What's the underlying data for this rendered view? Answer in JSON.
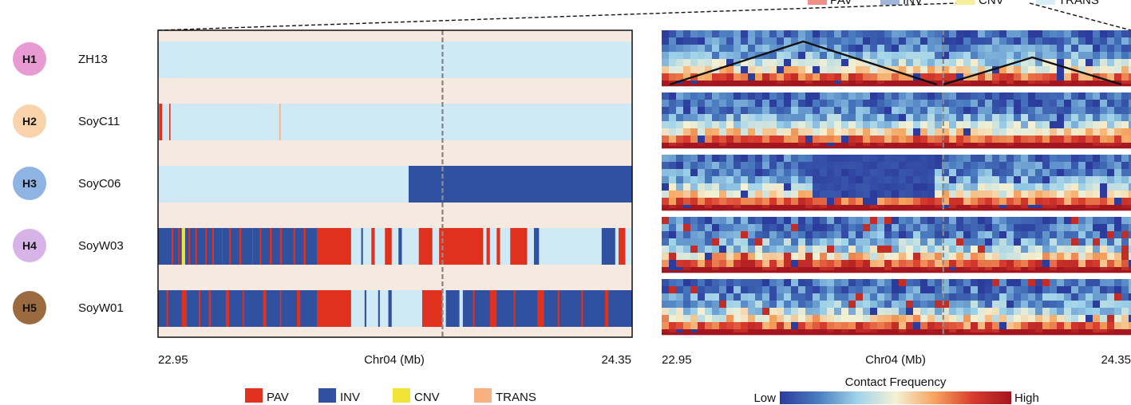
{
  "top_legend_partial": [
    "PAV",
    "INV",
    "CNV",
    "TRANS"
  ],
  "haplotypes": [
    {
      "id": "H1",
      "name": "ZH13",
      "color": "#e79bd2"
    },
    {
      "id": "H2",
      "name": "SoyC11",
      "color": "#f9d3ac"
    },
    {
      "id": "H3",
      "name": "SoyC06",
      "color": "#8fb3e3"
    },
    {
      "id": "H4",
      "name": "SoyW03",
      "color": "#d7b3e8"
    },
    {
      "id": "H5",
      "name": "SoyW01",
      "color": "#9b6a3f"
    }
  ],
  "chart_data": [
    {
      "type": "heatmap",
      "description_kind": "structural variant tracks",
      "xlabel": "Chr04 (Mb)",
      "xlim": [
        22.95,
        24.35
      ],
      "tick_labels": [
        "22.95",
        "24.35"
      ],
      "marker_position_mb": 23.79,
      "legend": [
        {
          "label": "PAV",
          "color": "#e0301e"
        },
        {
          "label": "INV",
          "color": "#3050a0"
        },
        {
          "label": "CNV",
          "color": "#f2e436"
        },
        {
          "label": "TRANS",
          "color": "#f7b07e"
        }
      ],
      "colors": {
        "background": "#f6e9df",
        "none": "#cfeaf4"
      },
      "tracks": [
        {
          "name": "ZH13",
          "segments": []
        },
        {
          "name": "SoyC11",
          "segments": [
            {
              "start": 22.953,
              "end": 22.962,
              "type": "PAV"
            },
            {
              "start": 22.983,
              "end": 22.986,
              "type": "PAV"
            },
            {
              "start": 23.308,
              "end": 23.312,
              "type": "TRANS"
            }
          ]
        },
        {
          "name": "SoyC06",
          "segments": [
            {
              "start": 23.69,
              "end": 24.35,
              "type": "INV"
            }
          ]
        },
        {
          "name": "SoyW03",
          "segments": [
            {
              "start": 22.95,
              "end": 23.14,
              "type": "INV"
            },
            {
              "start": 22.99,
              "end": 22.995,
              "type": "PAV"
            },
            {
              "start": 23.01,
              "end": 23.013,
              "type": "PAV"
            },
            {
              "start": 23.04,
              "end": 23.045,
              "type": "PAV"
            },
            {
              "start": 23.02,
              "end": 23.03,
              "type": "CNV"
            },
            {
              "start": 23.06,
              "end": 23.065,
              "type": "PAV"
            },
            {
              "start": 23.09,
              "end": 23.094,
              "type": "PAV"
            },
            {
              "start": 23.11,
              "end": 23.115,
              "type": "PAV"
            },
            {
              "start": 23.14,
              "end": 23.23,
              "type": "INV"
            },
            {
              "start": 23.16,
              "end": 23.165,
              "type": "PAV"
            },
            {
              "start": 23.19,
              "end": 23.196,
              "type": "PAV"
            },
            {
              "start": 23.23,
              "end": 23.42,
              "type": "INV"
            },
            {
              "start": 23.25,
              "end": 23.255,
              "type": "PAV"
            },
            {
              "start": 23.28,
              "end": 23.286,
              "type": "PAV"
            },
            {
              "start": 23.31,
              "end": 23.316,
              "type": "PAV"
            },
            {
              "start": 23.35,
              "end": 23.355,
              "type": "PAV"
            },
            {
              "start": 23.38,
              "end": 23.386,
              "type": "PAV"
            },
            {
              "start": 23.42,
              "end": 23.52,
              "type": "PAV"
            },
            {
              "start": 23.55,
              "end": 23.555,
              "type": "INV"
            },
            {
              "start": 23.58,
              "end": 23.59,
              "type": "PAV"
            },
            {
              "start": 23.62,
              "end": 23.64,
              "type": "PAV"
            },
            {
              "start": 23.66,
              "end": 23.67,
              "type": "INV"
            },
            {
              "start": 23.72,
              "end": 23.76,
              "type": "PAV"
            },
            {
              "start": 23.78,
              "end": 23.91,
              "type": "PAV"
            },
            {
              "start": 23.92,
              "end": 23.93,
              "type": "PAV"
            },
            {
              "start": 23.95,
              "end": 23.96,
              "type": "PAV"
            },
            {
              "start": 23.99,
              "end": 24.04,
              "type": "PAV"
            },
            {
              "start": 24.06,
              "end": 24.075,
              "type": "INV"
            },
            {
              "start": 24.26,
              "end": 24.3,
              "type": "INV"
            },
            {
              "start": 24.31,
              "end": 24.33,
              "type": "PAV"
            }
          ]
        },
        {
          "name": "SoyW01",
          "segments": [
            {
              "start": 22.95,
              "end": 23.42,
              "type": "INV"
            },
            {
              "start": 22.975,
              "end": 22.98,
              "type": "PAV"
            },
            {
              "start": 23.02,
              "end": 23.035,
              "type": "PAV"
            },
            {
              "start": 23.07,
              "end": 23.075,
              "type": "PAV"
            },
            {
              "start": 23.1,
              "end": 23.106,
              "type": "PAV"
            },
            {
              "start": 23.15,
              "end": 23.16,
              "type": "PAV"
            },
            {
              "start": 23.2,
              "end": 23.204,
              "type": "PAV"
            },
            {
              "start": 23.26,
              "end": 23.27,
              "type": "PAV"
            },
            {
              "start": 23.31,
              "end": 23.314,
              "type": "PAV"
            },
            {
              "start": 23.36,
              "end": 23.37,
              "type": "PAV"
            },
            {
              "start": 23.42,
              "end": 23.52,
              "type": "PAV"
            },
            {
              "start": 23.56,
              "end": 23.565,
              "type": "INV"
            },
            {
              "start": 23.6,
              "end": 23.605,
              "type": "INV"
            },
            {
              "start": 23.63,
              "end": 23.64,
              "type": "INV"
            },
            {
              "start": 23.73,
              "end": 23.79,
              "type": "PAV"
            },
            {
              "start": 23.8,
              "end": 23.84,
              "type": "INV"
            },
            {
              "start": 23.85,
              "end": 24.35,
              "type": "INV"
            },
            {
              "start": 23.88,
              "end": 23.885,
              "type": "PAV"
            },
            {
              "start": 23.93,
              "end": 23.95,
              "type": "PAV"
            },
            {
              "start": 24.0,
              "end": 24.005,
              "type": "PAV"
            },
            {
              "start": 24.07,
              "end": 24.09,
              "type": "PAV"
            },
            {
              "start": 24.13,
              "end": 24.135,
              "type": "PAV"
            },
            {
              "start": 24.2,
              "end": 24.205,
              "type": "PAV"
            },
            {
              "start": 24.27,
              "end": 24.28,
              "type": "PAV"
            }
          ]
        }
      ]
    },
    {
      "type": "heatmap",
      "description_kind": "Hi-C contact maps",
      "xlabel": "Chr04 (Mb)",
      "xlim": [
        22.95,
        24.35
      ],
      "tick_labels": [
        "22.95",
        "24.35"
      ],
      "marker_position_mb": 23.79,
      "colorbar": {
        "title": "Contact Frequency",
        "low_label": "Low",
        "high_label": "High",
        "colors": [
          "#2b3c9c",
          "#4a7cc0",
          "#9fd3ea",
          "#f4f1d4",
          "#f6a560",
          "#d83c2e",
          "#a3161f"
        ]
      },
      "domains_h1_mb": [
        [
          22.95,
          23.79
        ],
        [
          23.79,
          24.35
        ]
      ],
      "panels": [
        {
          "name": "ZH13",
          "contrast": 1.0
        },
        {
          "name": "SoyC11",
          "contrast": 1.0
        },
        {
          "name": "SoyC06",
          "contrast": 1.0
        },
        {
          "name": "SoyW03",
          "contrast": 1.2
        },
        {
          "name": "SoyW01",
          "contrast": 1.2
        }
      ]
    }
  ]
}
